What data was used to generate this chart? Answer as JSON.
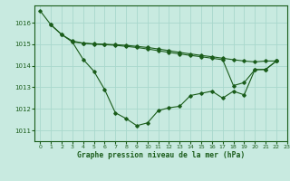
{
  "title": "Graphe pression niveau de la mer (hPa)",
  "background_color": "#c8eae0",
  "line_color": "#1a5c1a",
  "grid_color": "#a8d8cc",
  "xlim": [
    -0.5,
    23
  ],
  "ylim": [
    1010.5,
    1016.8
  ],
  "yticks": [
    1011,
    1012,
    1013,
    1014,
    1015,
    1016
  ],
  "xticks": [
    0,
    1,
    2,
    3,
    4,
    5,
    6,
    7,
    8,
    9,
    10,
    11,
    12,
    13,
    14,
    15,
    16,
    17,
    18,
    19,
    20,
    21,
    22,
    23
  ],
  "series1_x": [
    0,
    1,
    2,
    3,
    4,
    5,
    6,
    7,
    8,
    9,
    10,
    11,
    12,
    13,
    14,
    15,
    16,
    17,
    18,
    19,
    20,
    21,
    22
  ],
  "series1_y": [
    1016.55,
    1015.9,
    1015.45,
    1015.1,
    1014.3,
    1013.75,
    1012.9,
    1011.82,
    1011.55,
    1011.22,
    1011.35,
    1011.92,
    1012.05,
    1012.12,
    1012.62,
    1012.72,
    1012.82,
    1012.5,
    1012.82,
    1012.65,
    1013.82,
    1013.83,
    1014.22
  ],
  "series2_x": [
    1,
    2,
    3,
    4,
    5,
    6,
    7,
    8,
    9,
    10,
    11,
    12,
    13,
    14,
    15,
    16,
    17,
    18,
    19,
    20,
    21,
    22
  ],
  "series2_y": [
    1015.9,
    1015.45,
    1015.15,
    1015.05,
    1015.02,
    1015.0,
    1014.98,
    1014.95,
    1014.9,
    1014.85,
    1014.78,
    1014.7,
    1014.62,
    1014.55,
    1014.48,
    1014.42,
    1014.35,
    1014.28,
    1014.22,
    1014.18,
    1014.22,
    1014.22
  ],
  "series3_x": [
    3,
    4,
    5,
    6,
    7,
    8,
    9,
    10,
    11,
    12,
    13,
    14,
    15,
    16,
    17,
    18,
    19,
    20,
    21,
    22
  ],
  "series3_y": [
    1015.1,
    1015.05,
    1015.0,
    1014.98,
    1014.95,
    1014.9,
    1014.85,
    1014.78,
    1014.7,
    1014.62,
    1014.55,
    1014.48,
    1014.42,
    1014.35,
    1014.28,
    1013.08,
    1013.22,
    1013.82,
    1013.83,
    1014.22
  ]
}
